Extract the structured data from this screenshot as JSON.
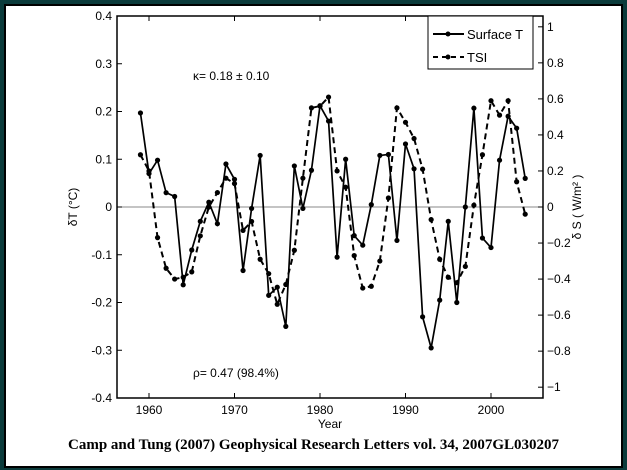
{
  "chart_data": {
    "type": "line",
    "xlabel": "Year",
    "ylabel_left": "δT (°C)",
    "ylabel_right": "δ S ( W/m² )",
    "xlim": [
      1956,
      2006
    ],
    "ylim_left": [
      -0.4,
      0.4
    ],
    "ylim_right": [
      -1.06,
      1.06
    ],
    "xticks": [
      1960,
      1970,
      1980,
      1990,
      2000
    ],
    "yticks_left": [
      "0.4",
      "0.3",
      "0.2",
      "0.1",
      "0",
      "-0.1",
      "-0.2",
      "-0.3",
      "-0.4"
    ],
    "yticks_left_values": [
      0.4,
      0.3,
      0.2,
      0.1,
      0,
      -0.1,
      -0.2,
      -0.3,
      -0.4
    ],
    "yticks_right": [
      "1",
      "0.8",
      "0.6",
      "0.4",
      "0.2",
      "0",
      "-0.2",
      "-0.4",
      "-0.6",
      "-0.8",
      "-1"
    ],
    "yticks_right_values": [
      1,
      0.8,
      0.6,
      0.4,
      0.2,
      0,
      -0.2,
      -0.4,
      -0.6,
      -0.8,
      -1
    ],
    "annotations": [
      "κ= 0.18 ± 0.10",
      "ρ= 0.47 (98.4%)"
    ],
    "legend_position": "top-right",
    "x": [
      1959,
      1960,
      1961,
      1962,
      1963,
      1964,
      1965,
      1966,
      1967,
      1968,
      1969,
      1970,
      1971,
      1972,
      1973,
      1974,
      1975,
      1976,
      1977,
      1978,
      1979,
      1980,
      1981,
      1982,
      1983,
      1984,
      1985,
      1986,
      1987,
      1988,
      1989,
      1990,
      1991,
      1992,
      1993,
      1994,
      1995,
      1996,
      1997,
      1998,
      1999,
      2000,
      2001,
      2002,
      2003,
      2004
    ],
    "series": [
      {
        "name": "Surface T",
        "axis": "left",
        "style": "solid",
        "values": [
          0.197,
          0.07,
          0.098,
          0.03,
          0.022,
          -0.163,
          -0.09,
          -0.03,
          0.01,
          -0.035,
          0.09,
          0.058,
          -0.133,
          -0.003,
          0.108,
          -0.185,
          -0.168,
          -0.25,
          0.086,
          -0.003,
          0.077,
          0.212,
          0.18,
          -0.105,
          0.1,
          -0.06,
          -0.08,
          0.005,
          0.108,
          0.11,
          -0.07,
          0.132,
          0.08,
          -0.23,
          -0.295,
          -0.195,
          -0.03,
          -0.2,
          0.0,
          0.207,
          -0.065,
          -0.085,
          0.098,
          0.19,
          0.165,
          0.06
        ]
      },
      {
        "name": "TSI",
        "axis": "right",
        "style": "dashed",
        "values": [
          0.29,
          0.2,
          -0.17,
          -0.34,
          -0.4,
          -0.39,
          -0.36,
          -0.16,
          0.0,
          0.08,
          0.16,
          0.13,
          -0.13,
          -0.08,
          -0.29,
          -0.37,
          -0.54,
          -0.43,
          -0.24,
          0.16,
          0.55,
          0.56,
          0.61,
          0.2,
          0.11,
          -0.27,
          -0.45,
          -0.44,
          -0.3,
          0.05,
          0.55,
          0.47,
          0.38,
          0.21,
          -0.07,
          -0.29,
          -0.39,
          -0.42,
          -0.33,
          0.01,
          0.29,
          0.59,
          0.51,
          0.59,
          0.14,
          -0.04
        ]
      }
    ]
  },
  "caption": "Camp and Tung (2007) Geophysical Research Letters vol. 34, 2007GL030207"
}
